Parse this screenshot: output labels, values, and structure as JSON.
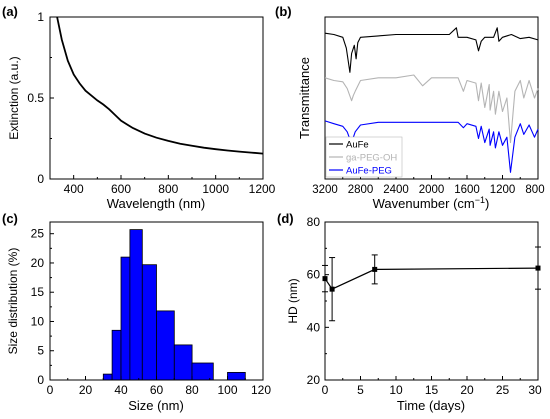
{
  "chart_data": [
    {
      "panel_label": "(a)",
      "type": "line",
      "title": "",
      "xlabel": "Wavelength (nm)",
      "ylabel": "Extinction (a.u.)",
      "xlim": [
        300,
        1200
      ],
      "ylim": [
        0,
        1
      ],
      "x_ticks": [
        "400",
        "600",
        "800",
        "1000",
        "1200"
      ],
      "y_ticks": [
        "0",
        "0.5",
        "1"
      ],
      "grid": false,
      "series": [
        {
          "color": "#000000",
          "x": [
            330,
            350,
            375,
            400,
            425,
            450,
            475,
            500,
            525,
            550,
            575,
            600,
            650,
            700,
            750,
            800,
            850,
            900,
            950,
            1000,
            1050,
            1100,
            1150,
            1200
          ],
          "y": [
            1.02,
            0.86,
            0.73,
            0.645,
            0.59,
            0.545,
            0.515,
            0.485,
            0.46,
            0.43,
            0.395,
            0.36,
            0.315,
            0.28,
            0.255,
            0.235,
            0.218,
            0.205,
            0.193,
            0.184,
            0.176,
            0.169,
            0.163,
            0.157
          ]
        }
      ]
    },
    {
      "panel_label": "(b)",
      "type": "line",
      "title": "",
      "xlabel": "Wavenumber (cm",
      "xlabel_sup": "−1",
      "xlabel_end": ")",
      "ylabel": "Transmittance",
      "xlim": [
        3200,
        800
      ],
      "x_reversed": true,
      "x_ticks": [
        "3200",
        "2800",
        "2400",
        "2000",
        "1600",
        "1200",
        "800"
      ],
      "y_ticks_shown": false,
      "legend": "bottom-left",
      "series": [
        {
          "name": "AuFe",
          "color": "#000000",
          "baseline": 0.93,
          "x": [
            3200,
            3100,
            3000,
            2960,
            2920,
            2900,
            2870,
            2850,
            2830,
            2800,
            2600,
            2400,
            2200,
            2000,
            1800,
            1720,
            1700,
            1650,
            1600,
            1500,
            1470,
            1440,
            1400,
            1300,
            1260,
            1240,
            1200,
            1100,
            1000,
            900,
            800
          ],
          "y": [
            0.93,
            0.92,
            0.9,
            0.82,
            0.64,
            0.78,
            0.84,
            0.74,
            0.86,
            0.9,
            0.91,
            0.92,
            0.92,
            0.92,
            0.92,
            0.97,
            0.9,
            0.9,
            0.9,
            0.88,
            0.8,
            0.87,
            0.9,
            0.9,
            0.97,
            0.87,
            0.9,
            0.92,
            0.89,
            0.9,
            0.88
          ]
        },
        {
          "name": "ga-PEG-OH",
          "color": "#b4b4b4",
          "baseline": 0.6,
          "x": [
            3200,
            3100,
            3000,
            2950,
            2900,
            2880,
            2860,
            2800,
            2600,
            2400,
            2200,
            2100,
            2000,
            1800,
            1700,
            1640,
            1600,
            1500,
            1470,
            1440,
            1400,
            1350,
            1340,
            1300,
            1280,
            1240,
            1200,
            1150,
            1110,
            1060,
            1000,
            960,
            900,
            840,
            800
          ],
          "y": [
            0.6,
            0.58,
            0.57,
            0.52,
            0.43,
            0.47,
            0.5,
            0.58,
            0.6,
            0.6,
            0.62,
            0.54,
            0.6,
            0.6,
            0.6,
            0.5,
            0.58,
            0.56,
            0.43,
            0.56,
            0.38,
            0.55,
            0.36,
            0.5,
            0.33,
            0.5,
            0.35,
            0.45,
            0.12,
            0.5,
            0.58,
            0.45,
            0.58,
            0.45,
            0.52
          ]
        },
        {
          "name": "AuFe-PEG",
          "color": "#0000ff",
          "baseline": 0.28,
          "x": [
            3200,
            3100,
            3000,
            2950,
            2900,
            2880,
            2860,
            2800,
            2600,
            2400,
            2200,
            2000,
            1800,
            1700,
            1640,
            1600,
            1500,
            1470,
            1440,
            1400,
            1350,
            1340,
            1300,
            1280,
            1240,
            1200,
            1150,
            1110,
            1060,
            1000,
            960,
            900,
            840,
            800
          ],
          "y": [
            0.28,
            0.26,
            0.24,
            0.2,
            0.11,
            0.16,
            0.2,
            0.25,
            0.27,
            0.27,
            0.27,
            0.27,
            0.27,
            0.27,
            0.23,
            0.26,
            0.24,
            0.15,
            0.24,
            0.12,
            0.22,
            0.1,
            0.2,
            0.08,
            0.2,
            0.1,
            0.16,
            -0.1,
            0.16,
            0.26,
            0.18,
            0.25,
            0.16,
            0.22
          ]
        }
      ]
    },
    {
      "panel_label": "(c)",
      "type": "bar",
      "title": "",
      "xlabel": "Size (nm)",
      "ylabel": "Size distribution (%)",
      "xlim": [
        0,
        120
      ],
      "ylim": [
        0,
        27
      ],
      "x_ticks": [
        "0",
        "20",
        "40",
        "60",
        "80",
        "100",
        "120"
      ],
      "y_ticks": [
        "0",
        "5",
        "10",
        "15",
        "20",
        "25"
      ],
      "bar_color": "#0000ff",
      "bar_edge": "#000000",
      "bins": [
        {
          "x0": 30,
          "x1": 35,
          "value": 1.0
        },
        {
          "x0": 35,
          "x1": 40,
          "value": 8.5
        },
        {
          "x0": 40,
          "x1": 45,
          "value": 21.0
        },
        {
          "x0": 45,
          "x1": 52,
          "value": 25.7
        },
        {
          "x0": 52,
          "x1": 60,
          "value": 19.7
        },
        {
          "x0": 60,
          "x1": 70,
          "value": 11.8
        },
        {
          "x0": 70,
          "x1": 80,
          "value": 6.0
        },
        {
          "x0": 80,
          "x1": 92,
          "value": 2.9
        },
        {
          "x0": 100,
          "x1": 110,
          "value": 1.3
        }
      ]
    },
    {
      "panel_label": "(d)",
      "type": "line",
      "title": "",
      "xlabel": "Time (days)",
      "ylabel": "HD (nm)",
      "xlim": [
        0,
        30
      ],
      "ylim": [
        20,
        80
      ],
      "x_ticks": [
        "0",
        "5",
        "10",
        "15",
        "20",
        "25",
        "30"
      ],
      "y_ticks": [
        "20",
        "40",
        "60",
        "80"
      ],
      "series": [
        {
          "color": "#000000",
          "marker": "square",
          "x": [
            0,
            1,
            7,
            30
          ],
          "y": [
            58.5,
            54.5,
            62.0,
            62.5
          ],
          "err": [
            5.0,
            12.0,
            5.5,
            8.0
          ]
        }
      ]
    }
  ]
}
